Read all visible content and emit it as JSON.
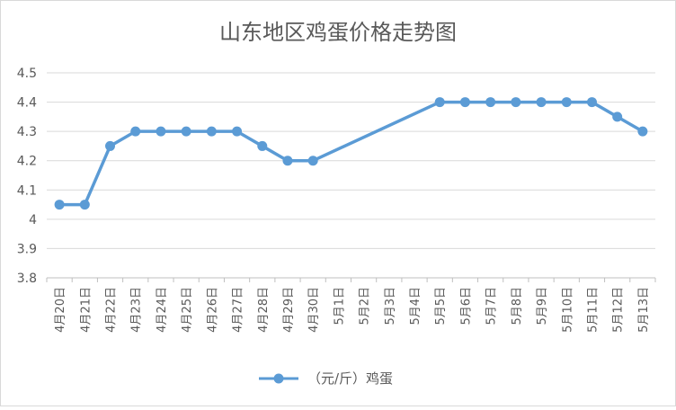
{
  "chart_data": {
    "type": "line",
    "title": "山东地区鸡蛋价格走势图",
    "xlabel": "",
    "ylabel": "",
    "ylim": [
      3.8,
      4.5
    ],
    "y_ticks": [
      "3.8",
      "3.9",
      "4",
      "4.1",
      "4.2",
      "4.3",
      "4.4",
      "4.5"
    ],
    "categories": [
      "4月20日",
      "4月21日",
      "4月22日",
      "4月23日",
      "4月24日",
      "4月25日",
      "4月26日",
      "4月27日",
      "4月28日",
      "4月29日",
      "4月30日",
      "5月1日",
      "5月2日",
      "5月3日",
      "5月4日",
      "5月5日",
      "5月6日",
      "5月7日",
      "5月8日",
      "5月9日",
      "5月10日",
      "5月11日",
      "5月12日",
      "5月13日"
    ],
    "series": [
      {
        "name": "（元/斤）鸡蛋",
        "color": "#5B9BD5",
        "values": [
          4.05,
          4.05,
          4.25,
          4.3,
          4.3,
          4.3,
          4.3,
          4.3,
          4.25,
          4.2,
          4.2,
          null,
          null,
          null,
          null,
          4.4,
          4.4,
          4.4,
          4.4,
          4.4,
          4.4,
          4.4,
          4.35,
          4.3
        ]
      }
    ],
    "grid": true,
    "legend": "bottom"
  }
}
